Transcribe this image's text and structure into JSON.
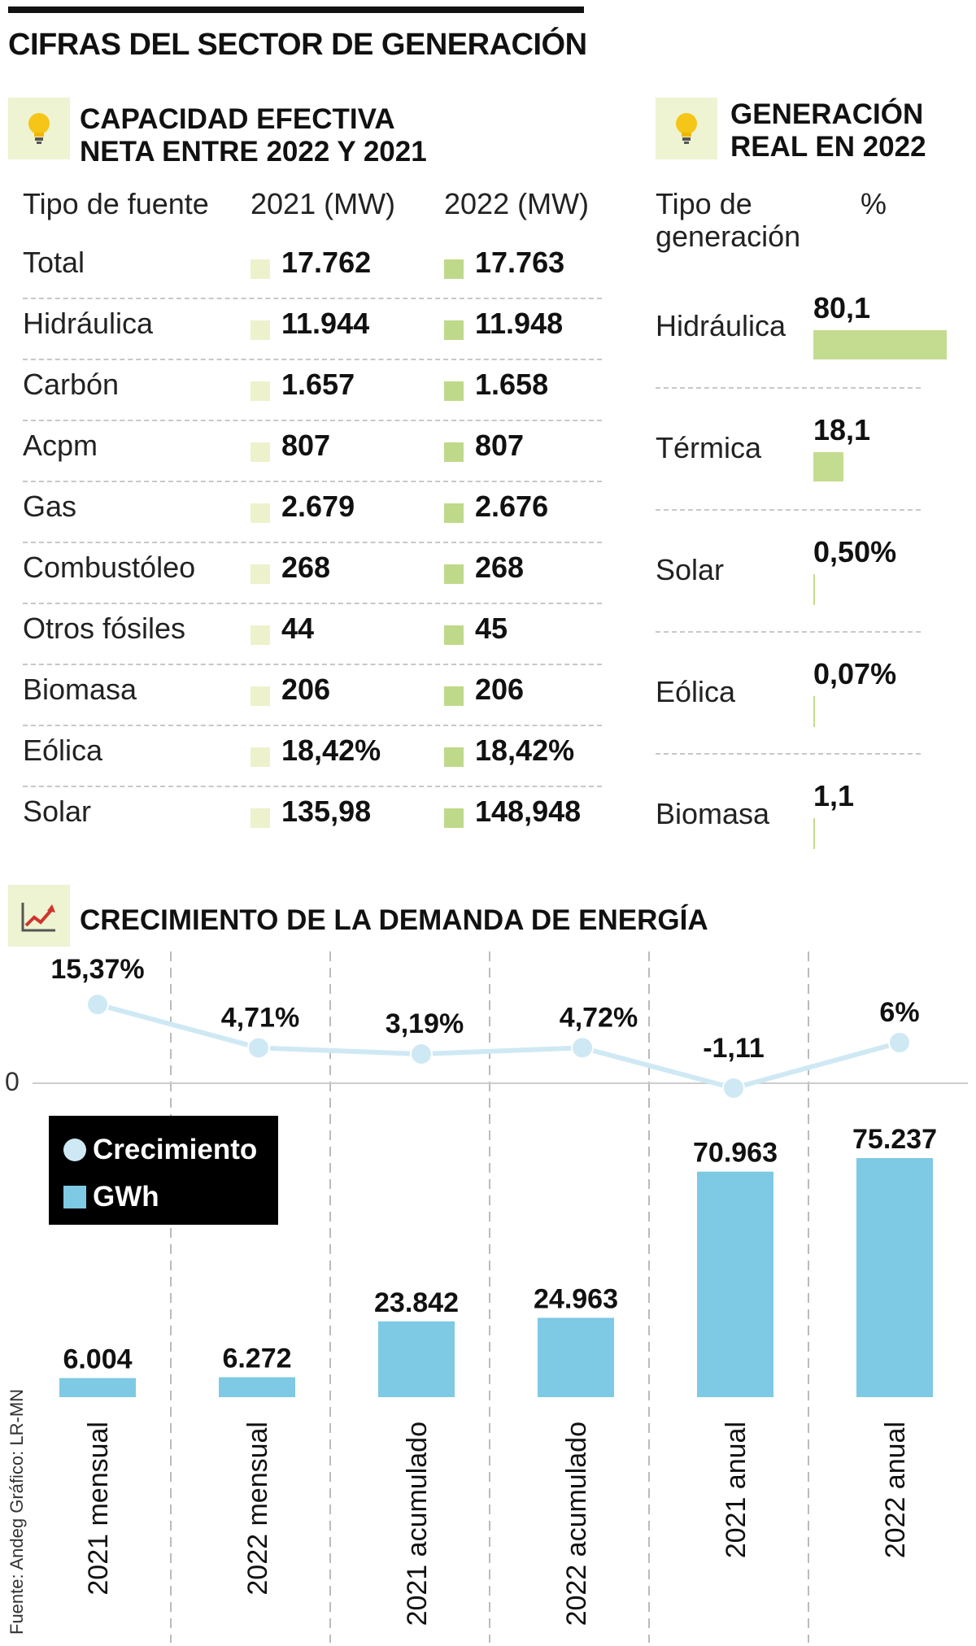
{
  "main_title": "CIFRAS DEL SECTOR DE GENERACIÓN",
  "capacity": {
    "title_line1": "CAPACIDAD EFECTIVA",
    "title_line2": "NETA ENTRE 2022 Y 2021",
    "icon": "lightbulb-icon",
    "headers": [
      "Tipo de fuente",
      "2021 (MW)",
      "2022 (MW)"
    ],
    "rows": [
      {
        "label": "Total",
        "v2021": "17.762",
        "v2022": "17.763"
      },
      {
        "label": "Hidráulica",
        "v2021": "11.944",
        "v2022": "11.948"
      },
      {
        "label": "Carbón",
        "v2021": "1.657",
        "v2022": "1.658"
      },
      {
        "label": "Acpm",
        "v2021": "807",
        "v2022": "807"
      },
      {
        "label": "Gas",
        "v2021": "2.679",
        "v2022": "2.676"
      },
      {
        "label": "Combustóleo",
        "v2021": "268",
        "v2022": "268"
      },
      {
        "label": "Otros fósiles",
        "v2021": "44",
        "v2022": "45"
      },
      {
        "label": "Biomasa",
        "v2021": "206",
        "v2022": "206"
      },
      {
        "label": "Eólica",
        "v2021": "18,42%",
        "v2022": "18,42%"
      },
      {
        "label": "Solar",
        "v2021": "135,98",
        "v2022": "148,948"
      }
    ],
    "colors": {
      "y2021": "#eef2cc",
      "y2022": "#bfd98a"
    }
  },
  "generation": {
    "title_line1": "GENERACIÓN",
    "title_line2": "REAL EN 2022",
    "icon": "lightbulb-icon",
    "header_type_line1": "Tipo de",
    "header_type_line2": "generación",
    "header_pct": "%",
    "bar_color": "#c4dc8f",
    "rows": [
      {
        "label": "Hidráulica",
        "value": 80.1,
        "display": "80,1"
      },
      {
        "label": "Térmica",
        "value": 18.1,
        "display": "18,1"
      },
      {
        "label": "Solar",
        "value": 0.5,
        "display": "0,50%"
      },
      {
        "label": "Eólica",
        "value": 0.07,
        "display": "0,07%"
      },
      {
        "label": "Biomasa",
        "value": 1.1,
        "display": "1,1"
      }
    ]
  },
  "demand": {
    "title": "CRECIMIENTO DE LA DEMANDA DE ENERGÍA",
    "icon": "chart-growth-icon",
    "zero_label": "0",
    "legend": {
      "growth": "Crecimiento",
      "gwh": "GWh"
    },
    "source": "Fuente: Andeg  Gráfico: LR-MN"
  },
  "chart_data": {
    "type": "bar",
    "title": "CRECIMIENTO DE LA DEMANDA DE ENERGÍA",
    "categories": [
      "2021 mensual",
      "2022 mensual",
      "2021 acumulado",
      "2022 acumulado",
      "2021 anual",
      "2022 anual"
    ],
    "series": [
      {
        "name": "GWh",
        "type": "bar",
        "color": "#7ec9e3",
        "values": [
          6004,
          6272,
          23842,
          24963,
          70963,
          75237
        ],
        "labels": [
          "6.004",
          "6.272",
          "23.842",
          "24.963",
          "70.963",
          "75.237"
        ]
      },
      {
        "name": "Crecimiento",
        "type": "line",
        "color": "#cfe9f4",
        "values": [
          15.37,
          4.71,
          3.19,
          4.72,
          -1.11,
          6
        ],
        "labels": [
          "15,37%",
          "4,71%",
          "3,19%",
          "4,72%",
          "-1,11",
          "6%"
        ]
      }
    ],
    "legend_position": "left",
    "grid": false
  }
}
